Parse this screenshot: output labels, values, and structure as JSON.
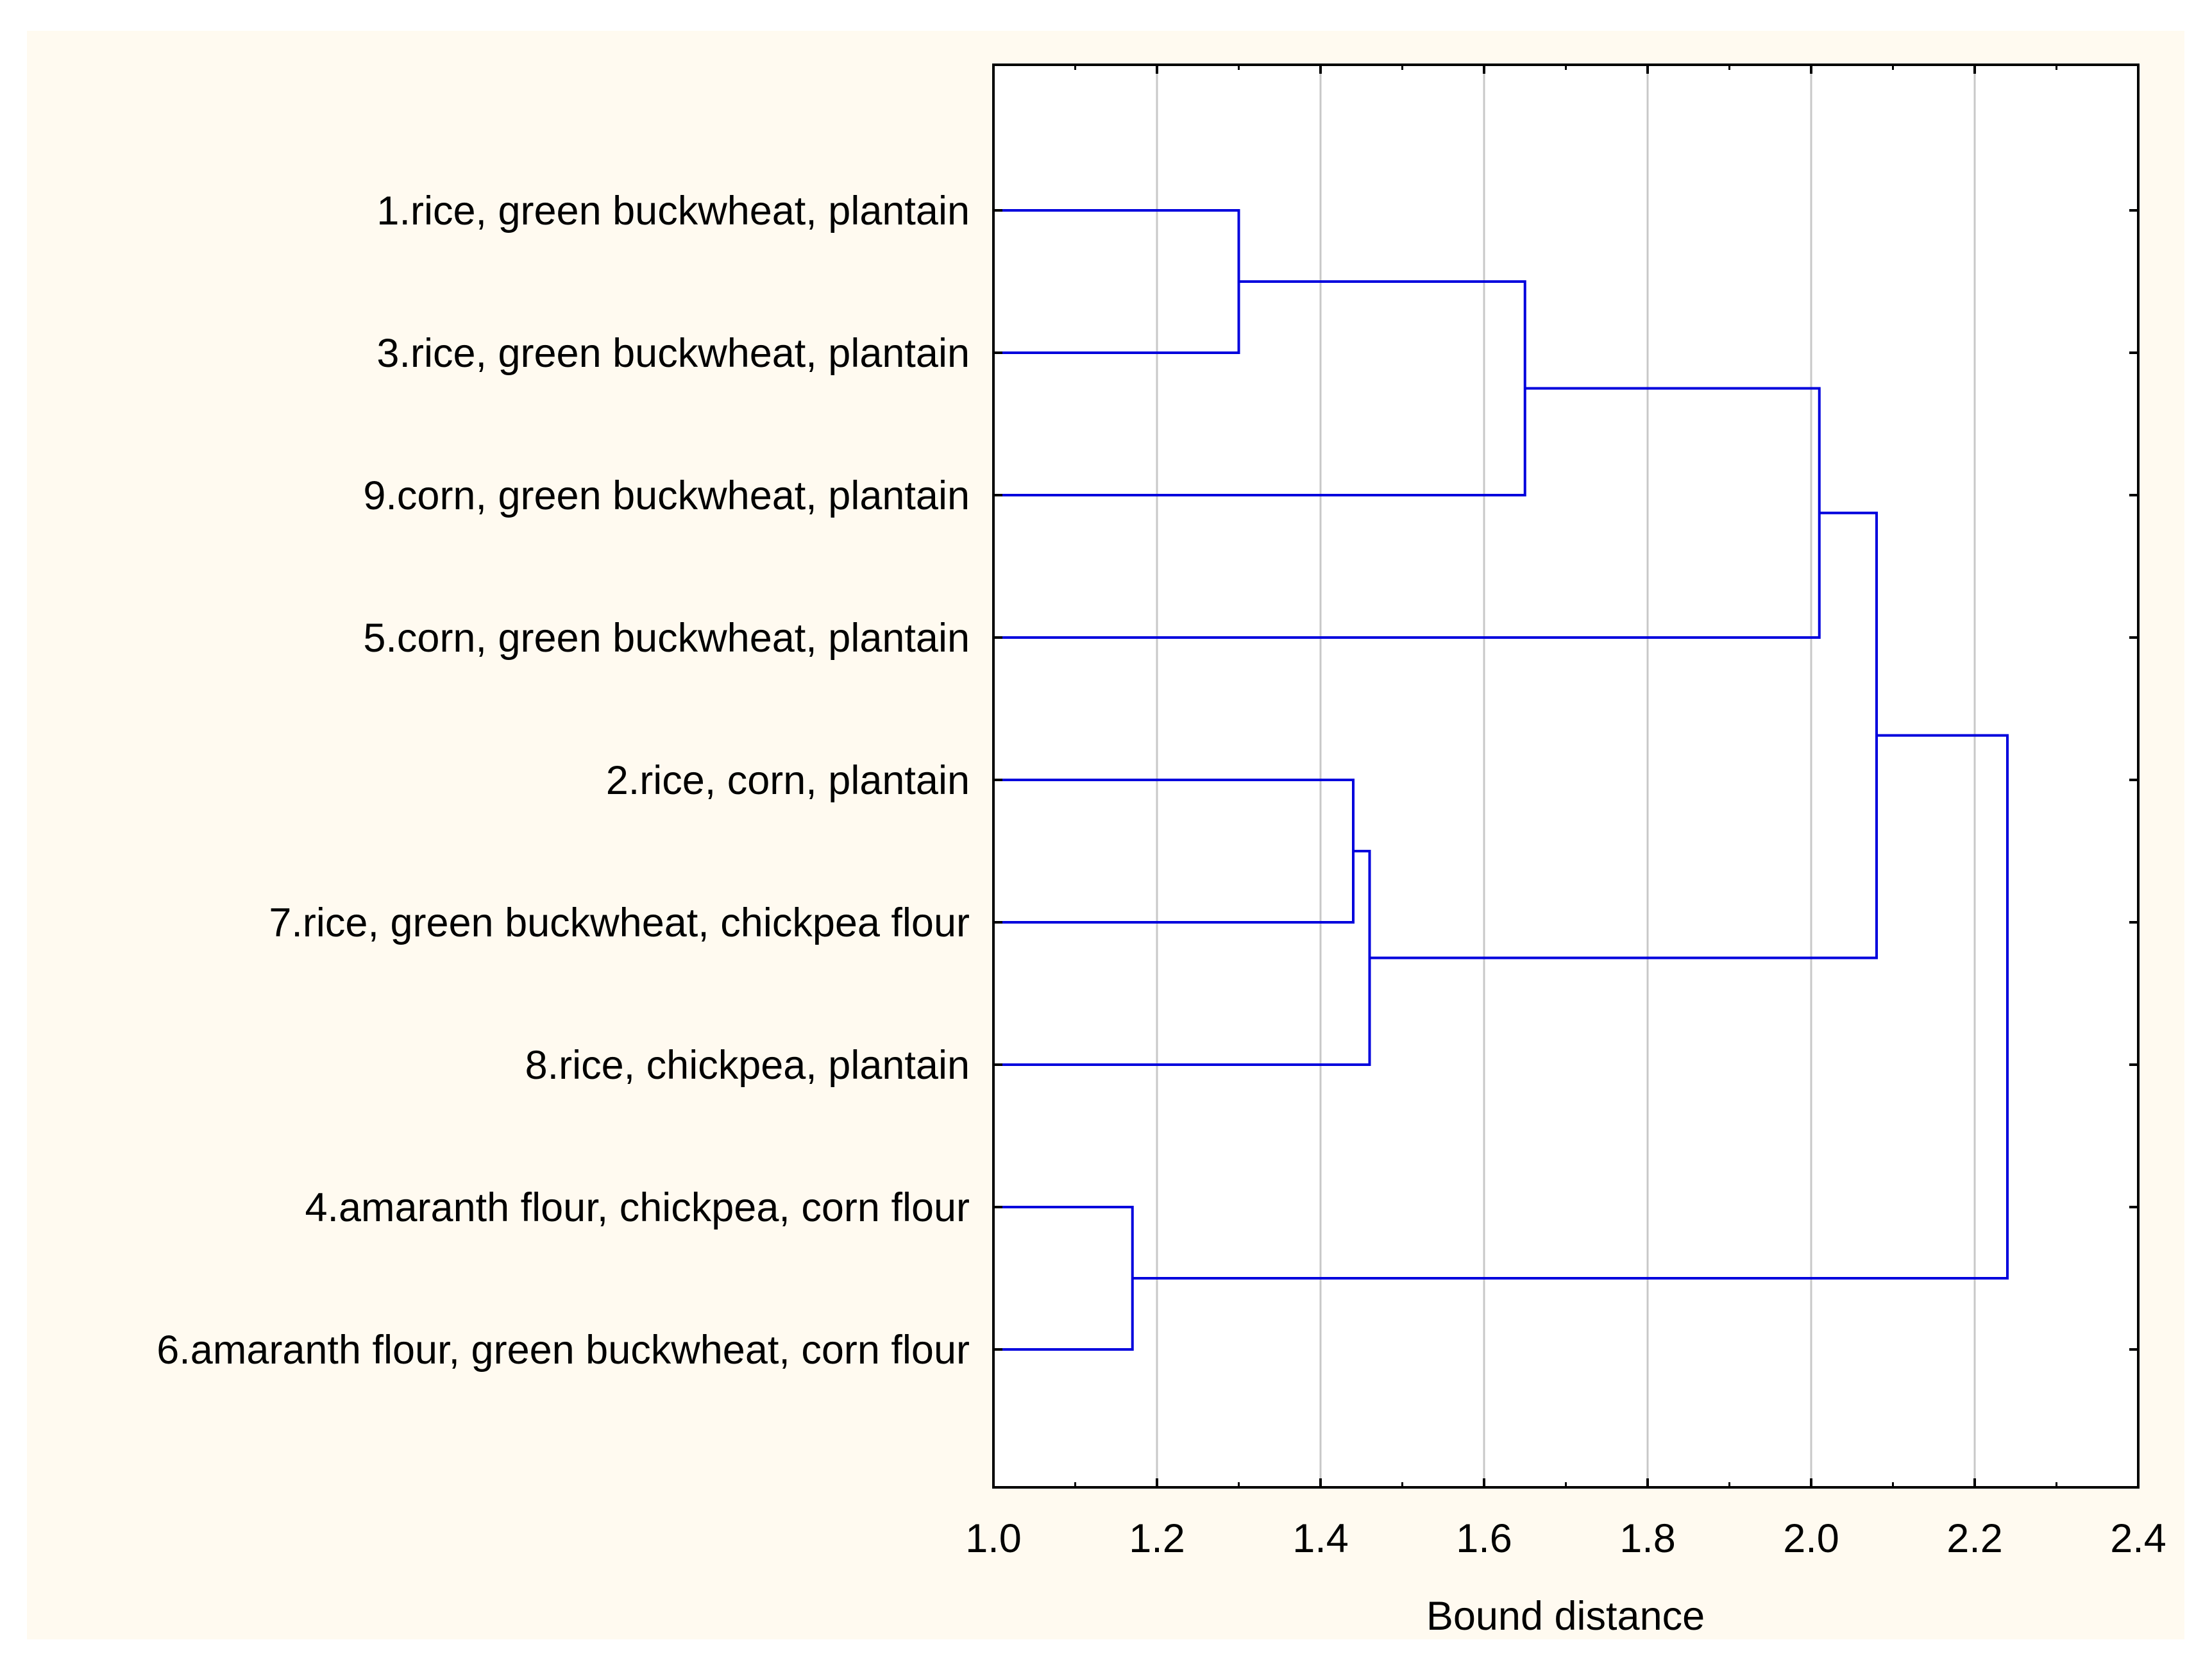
{
  "colors": {
    "panel_background": "#fffaf0",
    "plot_background": "#ffffff",
    "link_color": "#0000dd",
    "grid_color": "#c8c8c8",
    "axis_color": "#000000"
  },
  "chart_data": {
    "type": "dendrogram",
    "orientation": "horizontal",
    "title": "",
    "xlabel": "Bound distance",
    "ylabel": "",
    "xlim": [
      1.0,
      2.4
    ],
    "x_ticks": [
      1.0,
      1.2,
      1.4,
      1.6,
      1.8,
      2.0,
      2.2,
      2.4
    ],
    "x_tick_labels": [
      "1.0",
      "1.2",
      "1.4",
      "1.6",
      "1.8",
      "2.0",
      "2.2",
      "2.4"
    ],
    "grid": "vertical",
    "leaves": [
      "1.rice, green buckwheat, plantain",
      "3.rice, green buckwheat, plantain",
      "9.corn, green buckwheat, plantain",
      "5.corn, green buckwheat, plantain",
      "2.rice, corn, plantain",
      "7.rice, green buckwheat, chickpea flour",
      "8.rice, chickpea, plantain",
      "4.amaranth flour, chickpea, corn flour",
      "6.amaranth flour, green buckwheat, corn flour"
    ],
    "merges": [
      {
        "id": "m1",
        "left": 0,
        "right": 1,
        "height": 1.3
      },
      {
        "id": "m2",
        "left": "m1",
        "right": 2,
        "height": 1.65
      },
      {
        "id": "m3",
        "left": "m2",
        "right": 3,
        "height": 2.01
      },
      {
        "id": "m4",
        "left": 4,
        "right": 5,
        "height": 1.44
      },
      {
        "id": "m5",
        "left": "m4",
        "right": 6,
        "height": 1.46
      },
      {
        "id": "m6",
        "left": "m3",
        "right": "m5",
        "height": 2.08
      },
      {
        "id": "m7",
        "left": 7,
        "right": 8,
        "height": 1.17
      },
      {
        "id": "m8",
        "left": "m6",
        "right": "m7",
        "height": 2.24
      }
    ]
  }
}
